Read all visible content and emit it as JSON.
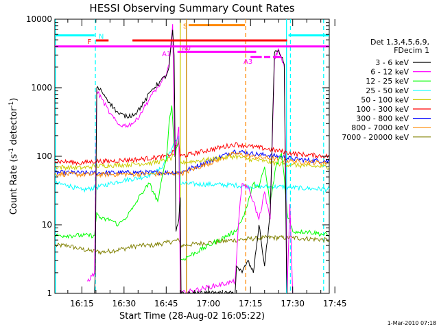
{
  "chart_data": {
    "type": "line",
    "title": "HESSI Observing Summary Count Rates",
    "xlabel": "Start Time (28-Aug-02 16:05:22)",
    "ylabel": "Count Rate (s⁻¹ detector⁻¹)",
    "ylabel_parts": {
      "prefix": "Count Rate (s",
      "exp1": "-1",
      "mid": " detector",
      "exp2": "-1",
      "suffix": ")"
    },
    "x_range_min": [
      5.4,
      103
    ],
    "ylim": [
      1,
      10000
    ],
    "y_scale": "log",
    "grid": false,
    "legend_position": "right",
    "x_ticks": [
      {
        "label": "16:15",
        "value": 15
      },
      {
        "label": "16:30",
        "value": 30
      },
      {
        "label": "16:45",
        "value": 45
      },
      {
        "label": "17:00",
        "value": 60
      },
      {
        "label": "17:15",
        "value": 75
      },
      {
        "label": "17:30",
        "value": 90
      },
      {
        "label": "17:45",
        "value": 105
      }
    ],
    "y_ticks": [
      {
        "label": "1",
        "value": 1
      },
      {
        "label": "10",
        "value": 10
      },
      {
        "label": "100",
        "value": 100
      },
      {
        "label": "1000",
        "value": 1000
      },
      {
        "label": "10000",
        "value": 10000
      }
    ],
    "legend_header": [
      "Det 1,3,4,5,6,9,",
      "FDecim 1"
    ],
    "series": [
      {
        "name": "3 - 6 keV",
        "color": "#000000",
        "points": [
          [
            19.5,
            1.0
          ],
          [
            19.8,
            2.2
          ],
          [
            20.3,
            1000
          ],
          [
            22,
            900
          ],
          [
            25,
            600
          ],
          [
            28,
            420
          ],
          [
            31,
            380
          ],
          [
            34,
            420
          ],
          [
            37,
            600
          ],
          [
            40,
            950
          ],
          [
            43,
            1250
          ],
          [
            45,
            1500
          ],
          [
            46,
            2000
          ],
          [
            47.3,
            7000
          ],
          [
            47.8,
            3000
          ],
          [
            48.5,
            8
          ],
          [
            49.5,
            12
          ],
          [
            50,
            25
          ],
          [
            50.3,
            1.0
          ],
          [
            69.5,
            1.0
          ],
          [
            70,
            2.5
          ],
          [
            72,
            2.0
          ],
          [
            74,
            3.0
          ],
          [
            76,
            2.0
          ],
          [
            78,
            10
          ],
          [
            80,
            2.5
          ],
          [
            82,
            15
          ],
          [
            83.5,
            3200
          ],
          [
            85,
            3500
          ],
          [
            86,
            2800
          ],
          [
            87,
            2200
          ],
          [
            87.8,
            2.0
          ],
          [
            88,
            1.0
          ]
        ]
      },
      {
        "name": "6 - 12 keV",
        "color": "#ff00ff",
        "points": [
          [
            17,
            1.5
          ],
          [
            19.5,
            2.0
          ],
          [
            20.3,
            900
          ],
          [
            22,
            700
          ],
          [
            25,
            420
          ],
          [
            28,
            290
          ],
          [
            31,
            280
          ],
          [
            34,
            320
          ],
          [
            37,
            500
          ],
          [
            40,
            800
          ],
          [
            43,
            1150
          ],
          [
            45,
            1500
          ],
          [
            46,
            2200
          ],
          [
            47.3,
            8500
          ],
          [
            48,
            100
          ],
          [
            49.5,
            270
          ],
          [
            50,
            1.0
          ],
          [
            69.5,
            1.5
          ],
          [
            71,
            15
          ],
          [
            72,
            40
          ],
          [
            74,
            35
          ],
          [
            76,
            22
          ],
          [
            78,
            12
          ],
          [
            80,
            30
          ],
          [
            82,
            12
          ],
          [
            83.5,
            2600
          ],
          [
            85,
            3700
          ],
          [
            86,
            2700
          ],
          [
            87,
            2000
          ],
          [
            87.8,
            8
          ],
          [
            88,
            1.0
          ],
          [
            89,
            20
          ],
          [
            90,
            1.0
          ]
        ]
      },
      {
        "name": "12 - 25 keV",
        "color": "#00ff00",
        "points": [
          [
            5.4,
            7
          ],
          [
            19.5,
            7
          ],
          [
            20.3,
            15
          ],
          [
            22,
            12
          ],
          [
            25,
            12
          ],
          [
            28,
            10
          ],
          [
            30,
            12
          ],
          [
            33,
            17
          ],
          [
            36,
            28
          ],
          [
            39,
            40
          ],
          [
            42,
            22
          ],
          [
            44,
            60
          ],
          [
            45,
            90
          ],
          [
            46,
            300
          ],
          [
            47,
            550
          ],
          [
            48,
            100
          ],
          [
            49.5,
            180
          ],
          [
            50,
            3
          ],
          [
            69.5,
            8
          ],
          [
            72,
            12
          ],
          [
            74,
            20
          ],
          [
            76,
            40
          ],
          [
            78,
            35
          ],
          [
            80,
            70
          ],
          [
            82,
            20
          ],
          [
            84,
            70
          ],
          [
            86,
            110
          ],
          [
            87,
            50
          ],
          [
            88,
            15
          ],
          [
            90,
            8
          ],
          [
            95,
            8
          ],
          [
            103,
            7
          ]
        ]
      },
      {
        "name": "25 - 50 keV",
        "color": "#00ffff",
        "points": [
          [
            5.4,
            40
          ],
          [
            10,
            38
          ],
          [
            15,
            32
          ],
          [
            20,
            35
          ],
          [
            25,
            40
          ],
          [
            30,
            45
          ],
          [
            35,
            48
          ],
          [
            40,
            55
          ],
          [
            43,
            65
          ],
          [
            45,
            90
          ],
          [
            47,
            130
          ],
          [
            49.5,
            200
          ],
          [
            50,
            40
          ],
          [
            69.5,
            38
          ],
          [
            75,
            36
          ],
          [
            80,
            36
          ],
          [
            85,
            36
          ],
          [
            90,
            35
          ],
          [
            95,
            34
          ],
          [
            103,
            33
          ]
        ]
      },
      {
        "name": "50 - 100 keV",
        "color": "#cccc00",
        "points": [
          [
            5.4,
            70
          ],
          [
            15,
            68
          ],
          [
            20,
            72
          ],
          [
            25,
            74
          ],
          [
            30,
            75
          ],
          [
            35,
            78
          ],
          [
            40,
            80
          ],
          [
            45,
            88
          ],
          [
            47,
            95
          ],
          [
            49.5,
            150
          ],
          [
            50,
            80
          ],
          [
            69.5,
            100
          ],
          [
            75,
            90
          ],
          [
            80,
            85
          ],
          [
            85,
            78
          ],
          [
            90,
            75
          ],
          [
            95,
            72
          ],
          [
            103,
            70
          ]
        ]
      },
      {
        "name": "100 - 300 keV",
        "color": "#ff0000",
        "points": [
          [
            5.4,
            85
          ],
          [
            15,
            80
          ],
          [
            20,
            85
          ],
          [
            25,
            85
          ],
          [
            30,
            88
          ],
          [
            35,
            90
          ],
          [
            40,
            95
          ],
          [
            45,
            100
          ],
          [
            47,
            110
          ],
          [
            49.5,
            160
          ],
          [
            50,
            100
          ],
          [
            69.5,
            150
          ],
          [
            75,
            140
          ],
          [
            80,
            130
          ],
          [
            85,
            120
          ],
          [
            90,
            110
          ],
          [
            95,
            105
          ],
          [
            103,
            100
          ]
        ]
      },
      {
        "name": "300 - 800 keV",
        "color": "#0000ff",
        "points": [
          [
            5.4,
            58
          ],
          [
            20,
            57
          ],
          [
            30,
            58
          ],
          [
            40,
            58
          ],
          [
            49.5,
            58
          ],
          [
            50,
            58
          ],
          [
            69.5,
            120
          ],
          [
            75,
            110
          ],
          [
            80,
            105
          ],
          [
            85,
            100
          ],
          [
            90,
            92
          ],
          [
            95,
            88
          ],
          [
            103,
            85
          ]
        ]
      },
      {
        "name": "800 - 7000 keV",
        "color": "#ff8800",
        "points": [
          [
            5.4,
            55
          ],
          [
            20,
            54
          ],
          [
            30,
            55
          ],
          [
            40,
            55
          ],
          [
            49.5,
            57
          ],
          [
            50,
            55
          ],
          [
            69.5,
            110
          ],
          [
            75,
            100
          ],
          [
            80,
            95
          ],
          [
            85,
            90
          ],
          [
            90,
            85
          ],
          [
            95,
            82
          ],
          [
            103,
            80
          ]
        ]
      },
      {
        "name": "7000 - 20000 keV",
        "color": "#808000",
        "points": [
          [
            5.4,
            5
          ],
          [
            10,
            5
          ],
          [
            14,
            4.5
          ],
          [
            18,
            4.2
          ],
          [
            22,
            4.0
          ],
          [
            26,
            4.2
          ],
          [
            30,
            4.5
          ],
          [
            35,
            5
          ],
          [
            40,
            5
          ],
          [
            45,
            5.5
          ],
          [
            49.5,
            6
          ],
          [
            50,
            5
          ],
          [
            69.5,
            6
          ],
          [
            80,
            6.5
          ],
          [
            90,
            6.5
          ],
          [
            103,
            6
          ]
        ]
      }
    ],
    "vertical_markers": [
      {
        "x": 5.6,
        "color": "#00ffff",
        "style": "solid"
      },
      {
        "x": 19.8,
        "color": "#00ffff",
        "style": "dashed"
      },
      {
        "x": 50.0,
        "color": "#cccc00",
        "style": "solid"
      },
      {
        "x": 52.2,
        "color": "#cc8800",
        "style": "solid"
      },
      {
        "x": 73.3,
        "color": "#ff8800",
        "style": "dashed"
      },
      {
        "x": 87.8,
        "color": "#00ffff",
        "style": "solid"
      },
      {
        "x": 89.2,
        "color": "#00ffff",
        "style": "dashed"
      },
      {
        "x": 101.0,
        "color": "#00ffff",
        "style": "dashed"
      }
    ],
    "flag_bars": [
      {
        "label": "N",
        "color": "#00ffff",
        "segments": [
          [
            5.4,
            19.5
          ],
          [
            88.5,
            103
          ]
        ],
        "y": 5800
      },
      {
        "label": "S",
        "color": "#ff8800",
        "segments": [
          [
            53,
            73
          ]
        ],
        "y": 8200
      },
      {
        "label": "F",
        "color": "#ff0000",
        "segments": [
          [
            20,
            24.5
          ],
          [
            33,
            88
          ]
        ],
        "y": 4900
      },
      {
        "label": "A0",
        "color": "#ff00ff",
        "segments": [
          [
            5.4,
            103
          ]
        ],
        "y": 4000
      },
      {
        "label": "A1",
        "color": "#ff00ff",
        "segments": [
          [
            49,
            77
          ]
        ],
        "y": 3350
      },
      {
        "label": "A3",
        "color": "#ff00ff",
        "segments": [
          [
            75,
            79
          ],
          [
            79.8,
            82
          ],
          [
            83,
            86
          ]
        ],
        "y": 2800
      }
    ],
    "flag_labels": [
      {
        "text": "N",
        "color": "#00ffff",
        "x": 21,
        "y": 5700
      },
      {
        "text": "F",
        "color": "#ff0000",
        "x": 17,
        "y": 4800
      },
      {
        "text": "S",
        "color": "#ff8800",
        "x": 51,
        "y": 8000
      },
      {
        "text": "A0",
        "color": "#ff00ff",
        "x": 50.5,
        "y": 3850
      },
      {
        "text": "A1",
        "color": "#ff00ff",
        "x": 43.5,
        "y": 3150
      },
      {
        "text": "A3",
        "color": "#ff00ff",
        "x": 72.5,
        "y": 2450
      }
    ]
  },
  "footer": {
    "timestamp": "1-Mar-2010 07:18"
  }
}
